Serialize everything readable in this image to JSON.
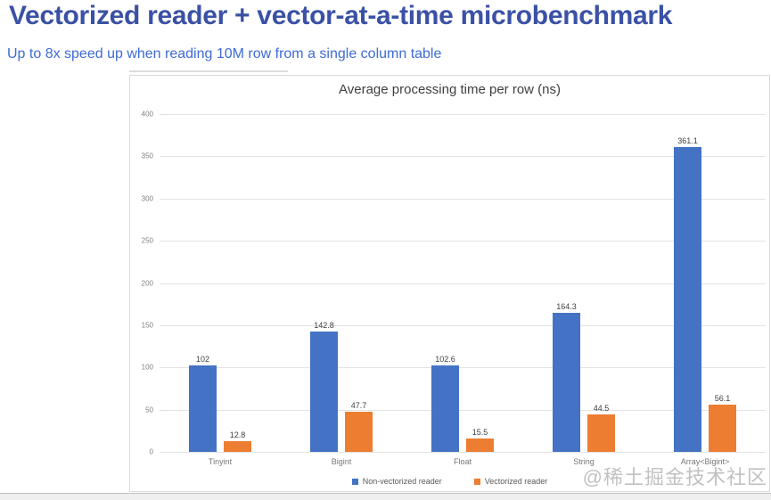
{
  "header": {
    "title": "Vectorized reader + vector-at-a-time microbenchmark",
    "subtitle": "Up to 8x speed up when reading 10M row from a single column table"
  },
  "watermark": {
    "text": "@稀土掘金技术社区"
  },
  "colors": {
    "title": "#3A51A5",
    "subtitle": "#3E6BD6",
    "non_vectorized": "#4472C4",
    "vectorized": "#ED7D31"
  },
  "chart_data": {
    "type": "bar",
    "title": "Average processing time per row (ns)",
    "categories": [
      "Tinyint",
      "Bigint",
      "Float",
      "String",
      "Array<Bigint>"
    ],
    "series": [
      {
        "name": "Non-vectorized reader",
        "color": "#4472C4",
        "values": [
          102,
          142.8,
          102.6,
          164.3,
          361.1
        ]
      },
      {
        "name": "Vectorized reader",
        "color": "#ED7D31",
        "values": [
          12.8,
          47.7,
          15.5,
          44.5,
          56.1
        ]
      }
    ],
    "xlabel": "",
    "ylabel": "",
    "ylim": [
      0,
      400
    ],
    "yticks": [
      0,
      50,
      100,
      150,
      200,
      250,
      300,
      350,
      400
    ],
    "grid": true,
    "legend_position": "bottom"
  }
}
